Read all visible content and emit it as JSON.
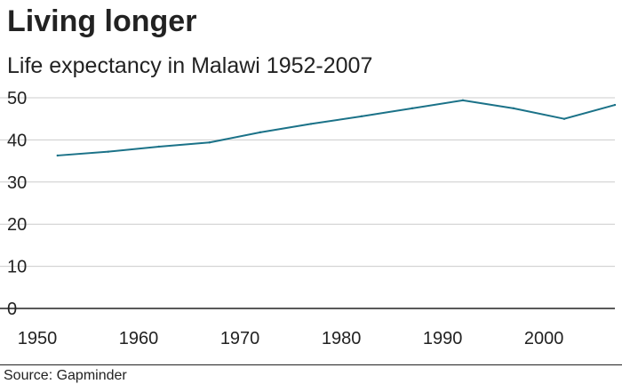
{
  "header": {
    "title": "Living longer",
    "subtitle": "Life expectancy in Malawi 1952-2007"
  },
  "footer": {
    "source": "Source: Gapminder"
  },
  "chart_data": {
    "type": "line",
    "title": "Living longer",
    "subtitle": "Life expectancy in Malawi 1952-2007",
    "xlabel": "",
    "ylabel": "",
    "xlim": [
      1950,
      2007
    ],
    "ylim": [
      0,
      50
    ],
    "x_ticks": [
      1950,
      1960,
      1970,
      1980,
      1990,
      2000
    ],
    "y_ticks": [
      0,
      10,
      20,
      30,
      40,
      50
    ],
    "grid": true,
    "legend": "none",
    "line_color": "#1b7288",
    "x": [
      1952,
      1957,
      1962,
      1967,
      1972,
      1977,
      1982,
      1987,
      1992,
      1997,
      2002,
      2007
    ],
    "series": [
      {
        "values": [
          36.3,
          37.2,
          38.4,
          39.4,
          41.8,
          43.8,
          45.6,
          47.5,
          49.4,
          47.5,
          45.0,
          48.3
        ]
      }
    ]
  }
}
